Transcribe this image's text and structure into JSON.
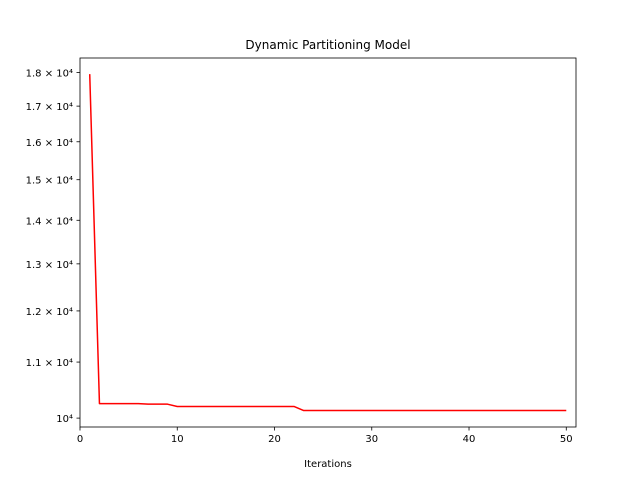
{
  "chart_data": {
    "type": "line",
    "title": "Dynamic Partitioning Model",
    "xlabel": "Iterations",
    "ylabel": "",
    "yscale": "log",
    "xlim": [
      0,
      51
    ],
    "ylim": [
      9850,
      18450
    ],
    "grid": false,
    "x_ticks": [
      0,
      10,
      20,
      30,
      40,
      50
    ],
    "y_ticks": [
      {
        "value": 10000,
        "label": "10⁴"
      },
      {
        "value": 11000,
        "label": "1.1 × 10⁴"
      },
      {
        "value": 12000,
        "label": "1.2 × 10⁴"
      },
      {
        "value": 13000,
        "label": "1.3 × 10⁴"
      },
      {
        "value": 14000,
        "label": "1.4 × 10⁴"
      },
      {
        "value": 15000,
        "label": "1.5 × 10⁴"
      },
      {
        "value": 16000,
        "label": "1.6 × 10⁴"
      },
      {
        "value": 17000,
        "label": "1.7 × 10⁴"
      },
      {
        "value": 18000,
        "label": "1.8 × 10⁴"
      }
    ],
    "series": [
      {
        "color": "#ff0000",
        "x": [
          1,
          2,
          3,
          4,
          5,
          6,
          7,
          8,
          9,
          10,
          11,
          12,
          13,
          14,
          15,
          16,
          17,
          18,
          19,
          20,
          21,
          22,
          23,
          24,
          25,
          26,
          27,
          28,
          29,
          30,
          31,
          32,
          33,
          34,
          35,
          36,
          37,
          38,
          39,
          40,
          41,
          42,
          43,
          44,
          45,
          46,
          47,
          48,
          49,
          50
        ],
        "y": [
          17950,
          10250,
          10250,
          10250,
          10250,
          10250,
          10240,
          10240,
          10240,
          10200,
          10200,
          10200,
          10200,
          10200,
          10200,
          10200,
          10200,
          10200,
          10200,
          10200,
          10200,
          10200,
          10130,
          10130,
          10130,
          10130,
          10130,
          10130,
          10130,
          10130,
          10130,
          10130,
          10130,
          10130,
          10130,
          10130,
          10130,
          10130,
          10130,
          10130,
          10130,
          10130,
          10130,
          10130,
          10130,
          10130,
          10130,
          10130,
          10130,
          10130
        ]
      }
    ]
  }
}
